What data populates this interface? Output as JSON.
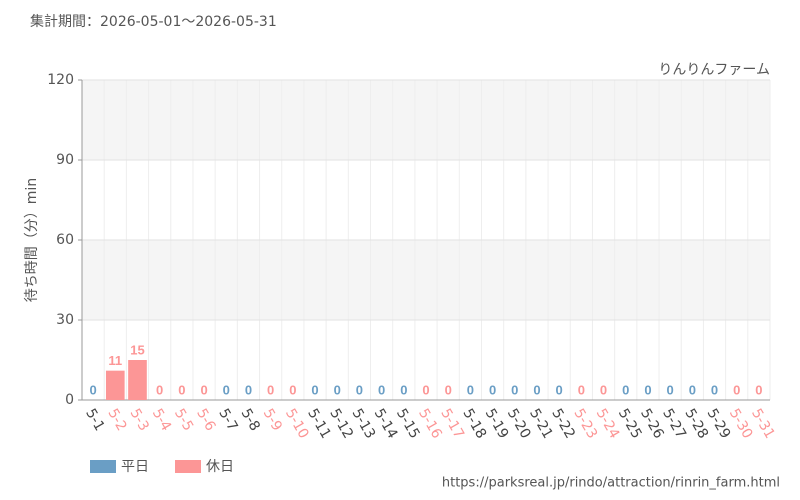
{
  "chart_data": {
    "type": "bar",
    "title": "集計期間：2026-05-01〜2026-05-31",
    "subtitle": "りんりんファーム",
    "y_label": "待ち時間（分）min",
    "source": "https://parksreal.jp/rindo/attraction/rinrin_farm.html",
    "categories": [
      "5-1",
      "5-2",
      "5-3",
      "5-4",
      "5-5",
      "5-6",
      "5-7",
      "5-8",
      "5-9",
      "5-10",
      "5-11",
      "5-12",
      "5-13",
      "5-14",
      "5-15",
      "5-16",
      "5-17",
      "5-18",
      "5-19",
      "5-20",
      "5-21",
      "5-22",
      "5-23",
      "5-24",
      "5-25",
      "5-26",
      "5-27",
      "5-28",
      "5-29",
      "5-30",
      "5-31"
    ],
    "series": [
      {
        "name": "平日",
        "color": "#6a9ec5",
        "values": [
          0,
          null,
          null,
          null,
          null,
          null,
          0,
          0,
          null,
          null,
          0,
          0,
          0,
          0,
          0,
          null,
          null,
          0,
          0,
          0,
          0,
          0,
          null,
          null,
          0,
          0,
          0,
          0,
          0,
          null,
          null
        ]
      },
      {
        "name": "休日",
        "color": "#fc9696",
        "values": [
          null,
          11,
          15,
          0,
          0,
          0,
          null,
          null,
          0,
          0,
          null,
          null,
          null,
          null,
          null,
          0,
          0,
          null,
          null,
          null,
          null,
          null,
          0,
          0,
          null,
          null,
          null,
          null,
          null,
          0,
          0
        ]
      }
    ],
    "ylim": [
      0,
      120
    ],
    "yticks": [
      0,
      30,
      60,
      90,
      120
    ],
    "grid": true
  }
}
